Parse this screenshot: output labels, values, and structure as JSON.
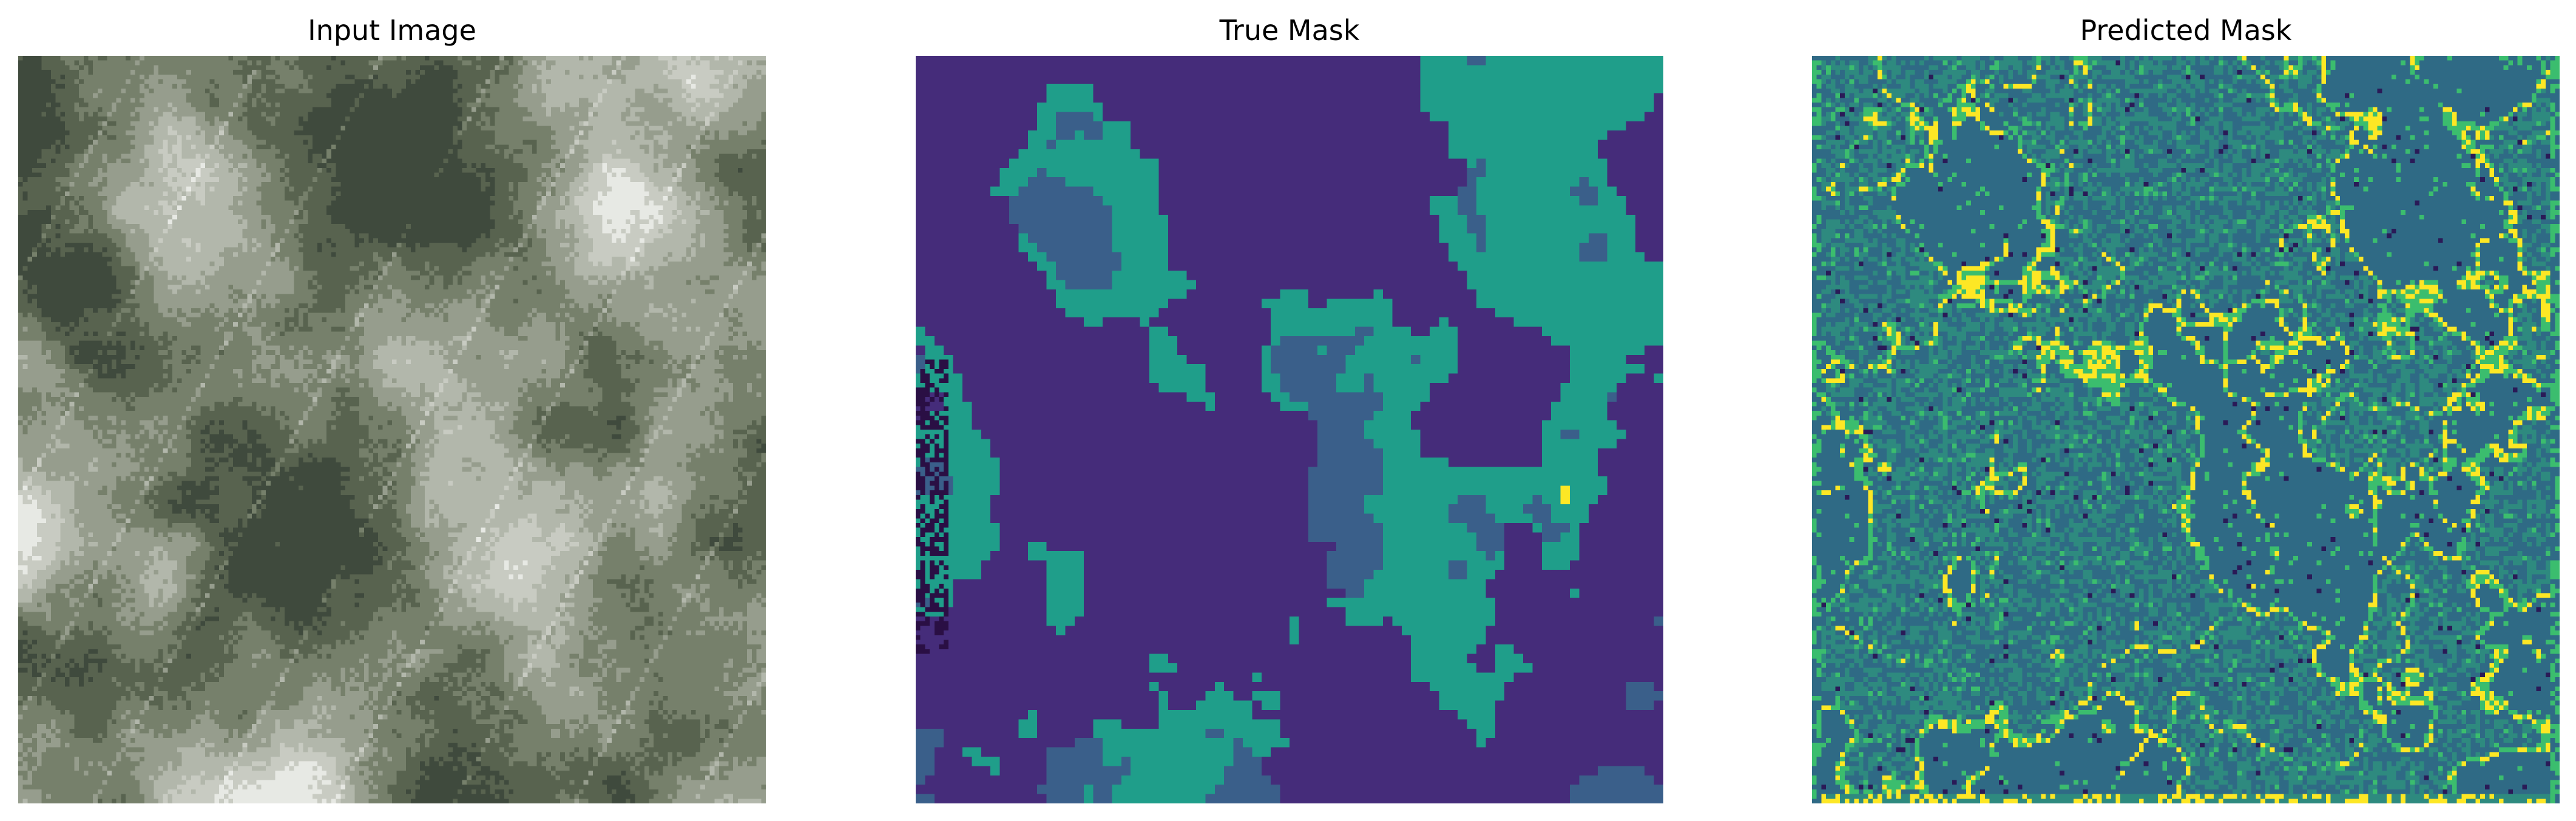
{
  "panels": [
    {
      "title": "Input Image",
      "kind": "aerial-photo",
      "palette": [
        "#3f4a3d",
        "#58634f",
        "#76806b",
        "#969d8d",
        "#b2b7ab",
        "#c8cbc2",
        "#e7e9e4"
      ]
    },
    {
      "title": "True Mask",
      "kind": "segmentation-mask",
      "palette": [
        "#452c7a",
        "#3a5f8a",
        "#1f9e8a",
        "#fde725",
        "#2a0f44"
      ]
    },
    {
      "title": "Predicted Mask",
      "kind": "segmentation-mask",
      "palette": [
        "#2f6a85",
        "#2e8a7f",
        "#3bbd6e",
        "#fde725",
        "#2a1a57"
      ]
    }
  ]
}
